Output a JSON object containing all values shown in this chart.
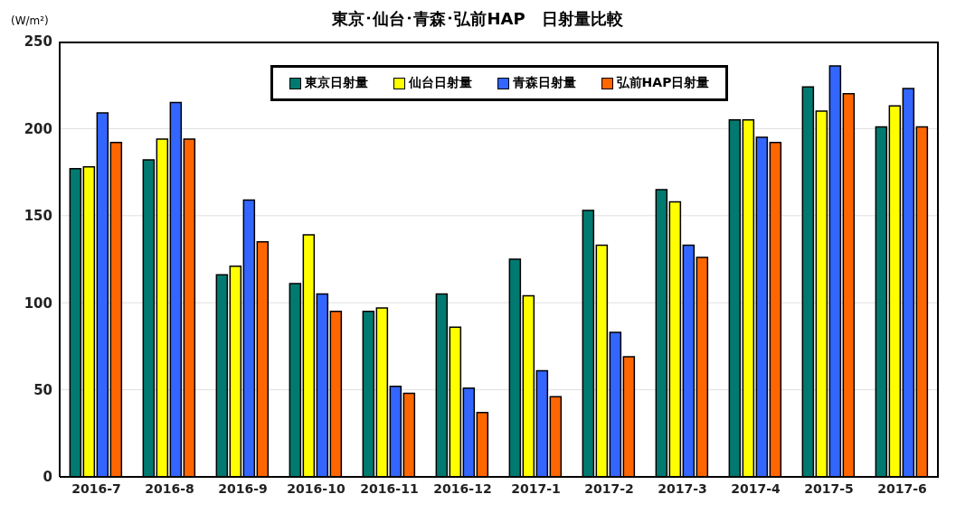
{
  "chart_data": {
    "type": "bar",
    "title": "東京･仙台･青森･弘前HAP　日射量比較",
    "ylabel": "(W/m²)",
    "categories": [
      "2016-7",
      "2016-8",
      "2016-9",
      "2016-10",
      "2016-11",
      "2016-12",
      "2017-1",
      "2017-2",
      "2017-3",
      "2017-4",
      "2017-5",
      "2017-6"
    ],
    "series": [
      {
        "name": "東京日射量",
        "color": "#007a70",
        "values": [
          177,
          182,
          116,
          111,
          95,
          105,
          125,
          153,
          165,
          205,
          224,
          201
        ]
      },
      {
        "name": "仙台日射量",
        "color": "#ffff00",
        "values": [
          178,
          194,
          121,
          139,
          97,
          86,
          104,
          133,
          158,
          205,
          210,
          213
        ]
      },
      {
        "name": "青森日射量",
        "color": "#3366ff",
        "values": [
          209,
          215,
          159,
          105,
          52,
          51,
          61,
          83,
          133,
          195,
          236,
          223
        ]
      },
      {
        "name": "弘前HAP日射量",
        "color": "#ff6600",
        "values": [
          192,
          194,
          135,
          95,
          48,
          37,
          46,
          69,
          126,
          192,
          220,
          201
        ]
      }
    ],
    "ylim": [
      0,
      250
    ],
    "yticks": [
      0,
      50,
      100,
      150,
      200,
      250
    ],
    "grid": "y",
    "legend": "top"
  }
}
